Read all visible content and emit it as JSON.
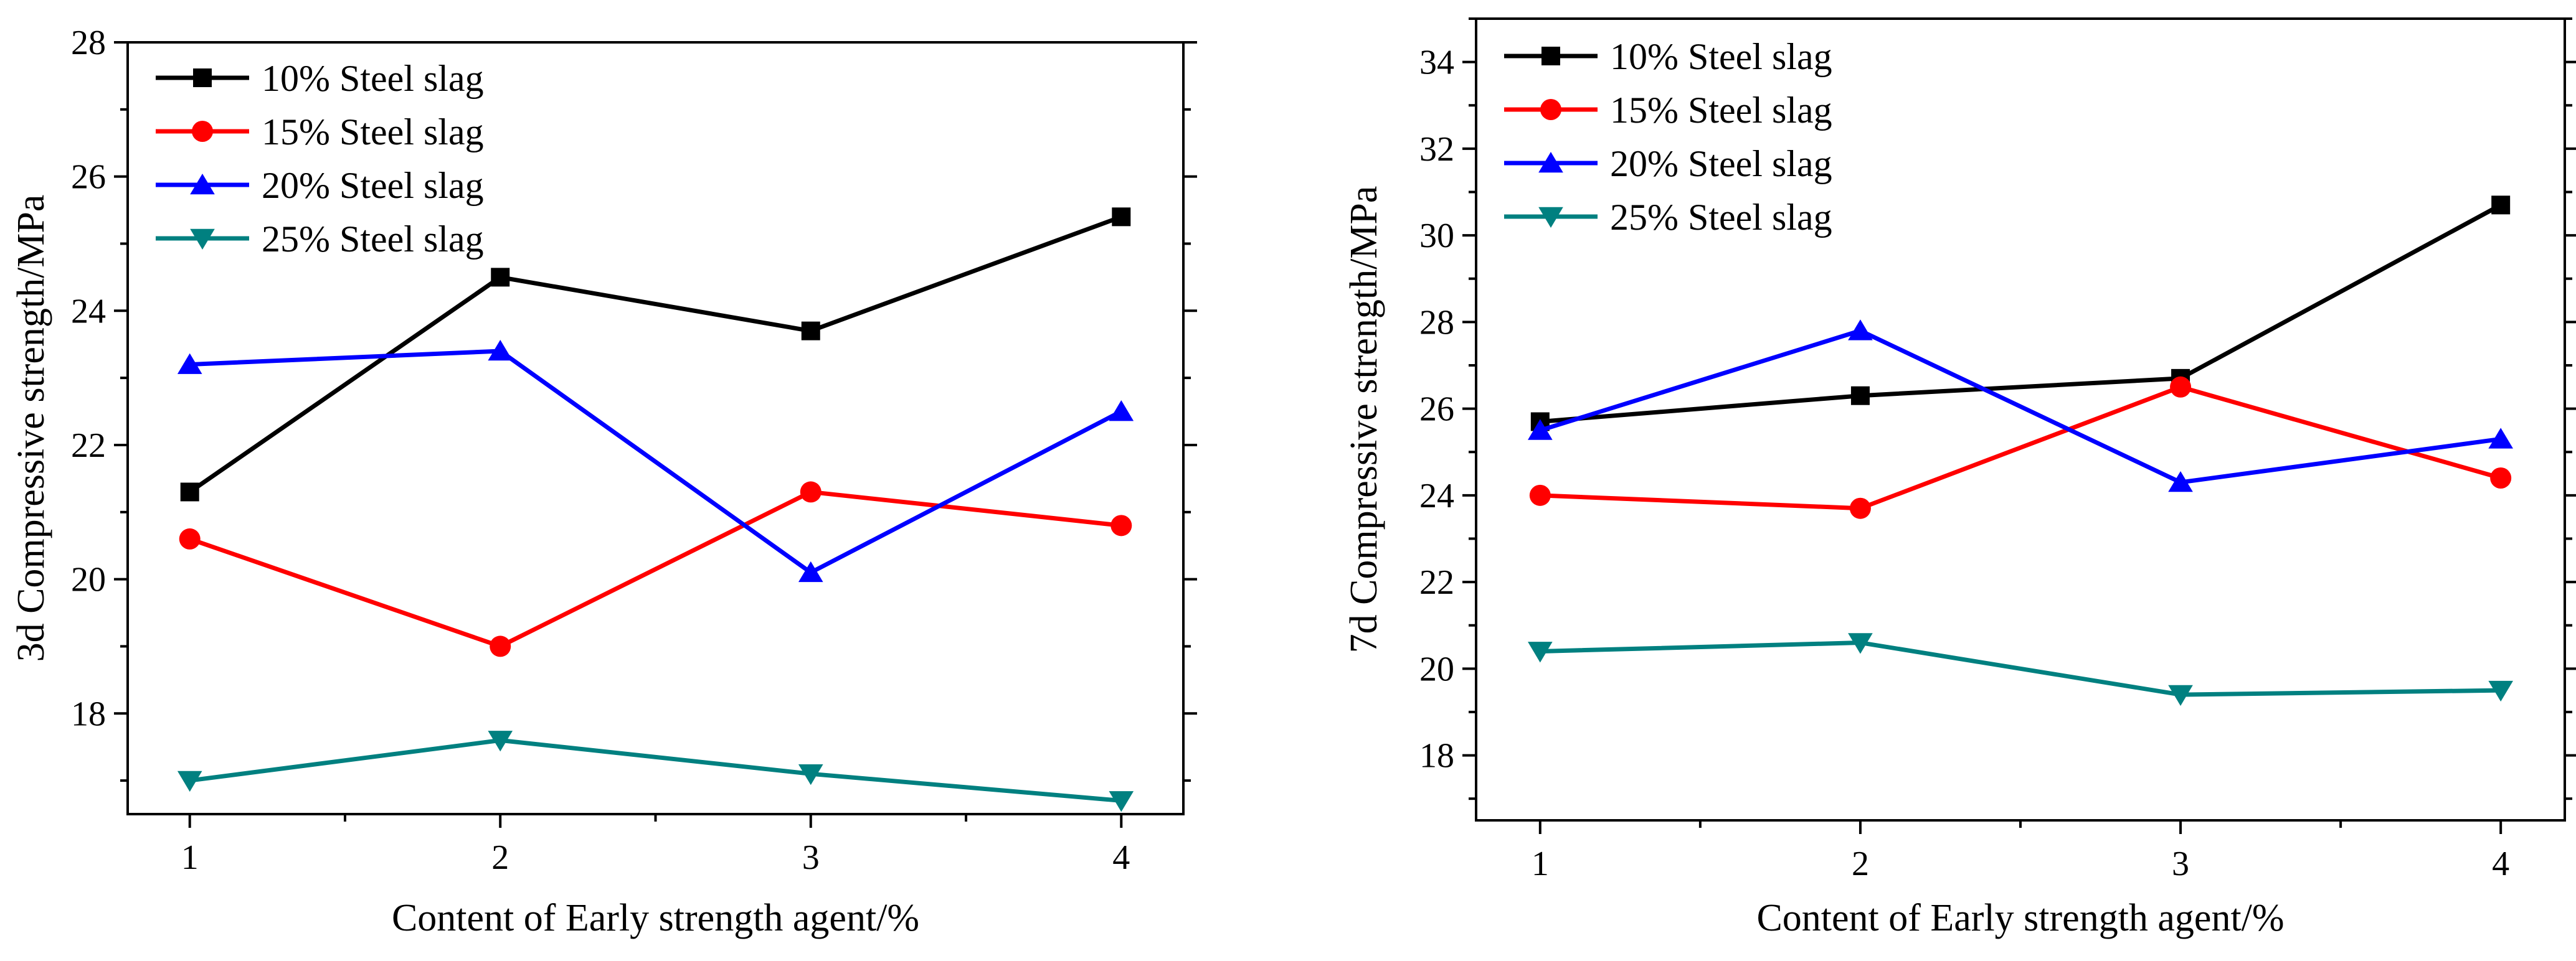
{
  "chart_data": [
    {
      "type": "line",
      "id": "left",
      "title": "",
      "xlabel": "Content of Early strength agent/%",
      "ylabel": "3d Compressive strength/MPa",
      "x": [
        1,
        2,
        3,
        4
      ],
      "x_ticks": [
        "1",
        "2",
        "3",
        "4"
      ],
      "xlim": [
        0.8,
        4.2
      ],
      "ylim": [
        16.5,
        28
      ],
      "y_ticks": [
        18,
        20,
        22,
        24,
        26,
        28
      ],
      "legend_position": "top-left",
      "series": [
        {
          "name": "10% Steel slag",
          "color": "#000000",
          "marker": "square",
          "values": [
            21.3,
            24.5,
            23.7,
            25.4
          ]
        },
        {
          "name": "15% Steel slag",
          "color": "#ff0000",
          "marker": "circle",
          "values": [
            20.6,
            19.0,
            21.3,
            20.8
          ]
        },
        {
          "name": "20% Steel slag",
          "color": "#0000ff",
          "marker": "triangle-up",
          "values": [
            23.2,
            23.4,
            20.1,
            22.5
          ]
        },
        {
          "name": "25% Steel slag",
          "color": "#008080",
          "marker": "triangle-down",
          "values": [
            17.0,
            17.6,
            17.1,
            16.7
          ]
        }
      ]
    },
    {
      "type": "line",
      "id": "right",
      "title": "",
      "xlabel": "Content of Early strength agent/%",
      "ylabel": "7d Compressive strength/MPa",
      "x": [
        1,
        2,
        3,
        4
      ],
      "x_ticks": [
        "1",
        "2",
        "3",
        "4"
      ],
      "xlim": [
        0.8,
        4.2
      ],
      "ylim": [
        16.5,
        35
      ],
      "y_ticks": [
        18,
        20,
        22,
        24,
        26,
        28,
        30,
        32,
        34
      ],
      "legend_position": "top-left",
      "series": [
        {
          "name": "10% Steel slag",
          "color": "#000000",
          "marker": "square",
          "values": [
            25.7,
            26.3,
            26.7,
            30.7
          ]
        },
        {
          "name": "15% Steel slag",
          "color": "#ff0000",
          "marker": "circle",
          "values": [
            24.0,
            23.7,
            26.5,
            24.4
          ]
        },
        {
          "name": "20% Steel slag",
          "color": "#0000ff",
          "marker": "triangle-up",
          "values": [
            25.5,
            27.8,
            24.3,
            25.3
          ]
        },
        {
          "name": "25% Steel slag",
          "color": "#008080",
          "marker": "triangle-down",
          "values": [
            20.4,
            20.6,
            19.4,
            19.5
          ]
        }
      ]
    }
  ]
}
